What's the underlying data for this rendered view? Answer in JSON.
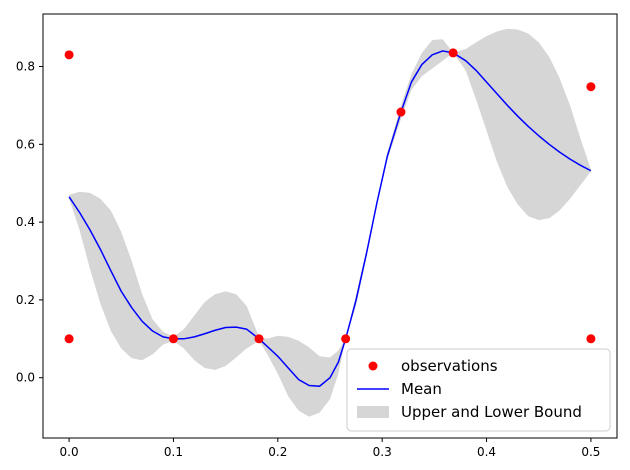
{
  "chart_data": {
    "type": "line",
    "title": "",
    "xlabel": "",
    "ylabel": "",
    "xlim": [
      -0.025,
      0.525
    ],
    "ylim": [
      -0.155,
      0.935
    ],
    "x_ticks": [
      0.0,
      0.1,
      0.2,
      0.3,
      0.4,
      0.5
    ],
    "x_tick_labels": [
      "0.0",
      "0.1",
      "0.2",
      "0.3",
      "0.4",
      "0.5"
    ],
    "y_ticks": [
      0.0,
      0.2,
      0.4,
      0.6,
      0.8
    ],
    "y_tick_labels": [
      "0.0",
      "0.2",
      "0.4",
      "0.6",
      "0.8"
    ],
    "grid": false,
    "legend_position": "bottom-right",
    "colors": {
      "observations": "#ff0000",
      "mean": "#0000ff",
      "band": "#d6d6d6"
    },
    "series": [
      {
        "name": "observations",
        "kind": "scatter",
        "points": [
          [
            0.0,
            0.83
          ],
          [
            0.0,
            0.1
          ],
          [
            0.1,
            0.1
          ],
          [
            0.182,
            0.1
          ],
          [
            0.265,
            0.1
          ],
          [
            0.318,
            0.683
          ],
          [
            0.368,
            0.835
          ],
          [
            0.5,
            0.748
          ],
          [
            0.5,
            0.1
          ]
        ]
      },
      {
        "name": "Mean",
        "kind": "line",
        "points": [
          [
            0.0,
            0.465
          ],
          [
            0.01,
            0.425
          ],
          [
            0.02,
            0.38
          ],
          [
            0.03,
            0.33
          ],
          [
            0.04,
            0.275
          ],
          [
            0.05,
            0.222
          ],
          [
            0.06,
            0.18
          ],
          [
            0.07,
            0.145
          ],
          [
            0.08,
            0.12
          ],
          [
            0.09,
            0.105
          ],
          [
            0.1,
            0.1
          ],
          [
            0.11,
            0.1
          ],
          [
            0.12,
            0.105
          ],
          [
            0.13,
            0.113
          ],
          [
            0.14,
            0.122
          ],
          [
            0.15,
            0.129
          ],
          [
            0.16,
            0.13
          ],
          [
            0.17,
            0.125
          ],
          [
            0.182,
            0.1
          ],
          [
            0.19,
            0.08
          ],
          [
            0.2,
            0.055
          ],
          [
            0.21,
            0.025
          ],
          [
            0.22,
            -0.005
          ],
          [
            0.23,
            -0.02
          ],
          [
            0.24,
            -0.022
          ],
          [
            0.25,
            0.0
          ],
          [
            0.258,
            0.04
          ],
          [
            0.265,
            0.1
          ],
          [
            0.275,
            0.2
          ],
          [
            0.285,
            0.32
          ],
          [
            0.295,
            0.45
          ],
          [
            0.305,
            0.57
          ],
          [
            0.318,
            0.683
          ],
          [
            0.328,
            0.76
          ],
          [
            0.338,
            0.805
          ],
          [
            0.348,
            0.83
          ],
          [
            0.358,
            0.84
          ],
          [
            0.368,
            0.835
          ],
          [
            0.38,
            0.815
          ],
          [
            0.39,
            0.79
          ],
          [
            0.4,
            0.76
          ],
          [
            0.41,
            0.73
          ],
          [
            0.42,
            0.7
          ],
          [
            0.43,
            0.672
          ],
          [
            0.44,
            0.646
          ],
          [
            0.45,
            0.622
          ],
          [
            0.46,
            0.6
          ],
          [
            0.47,
            0.58
          ],
          [
            0.48,
            0.562
          ],
          [
            0.49,
            0.546
          ],
          [
            0.5,
            0.532
          ]
        ]
      },
      {
        "name": "Upper and Lower Bound",
        "kind": "band",
        "upper": [
          [
            0.0,
            0.47
          ],
          [
            0.01,
            0.478
          ],
          [
            0.02,
            0.475
          ],
          [
            0.03,
            0.46
          ],
          [
            0.04,
            0.43
          ],
          [
            0.05,
            0.375
          ],
          [
            0.06,
            0.3
          ],
          [
            0.07,
            0.215
          ],
          [
            0.08,
            0.15
          ],
          [
            0.09,
            0.118
          ],
          [
            0.1,
            0.105
          ],
          [
            0.11,
            0.125
          ],
          [
            0.12,
            0.16
          ],
          [
            0.13,
            0.195
          ],
          [
            0.14,
            0.215
          ],
          [
            0.15,
            0.222
          ],
          [
            0.16,
            0.215
          ],
          [
            0.17,
            0.185
          ],
          [
            0.182,
            0.105
          ],
          [
            0.19,
            0.1
          ],
          [
            0.2,
            0.108
          ],
          [
            0.21,
            0.105
          ],
          [
            0.22,
            0.095
          ],
          [
            0.23,
            0.078
          ],
          [
            0.24,
            0.055
          ],
          [
            0.25,
            0.052
          ],
          [
            0.258,
            0.07
          ],
          [
            0.265,
            0.1
          ],
          [
            0.275,
            0.185
          ],
          [
            0.285,
            0.31
          ],
          [
            0.295,
            0.45
          ],
          [
            0.305,
            0.58
          ],
          [
            0.318,
            0.7
          ],
          [
            0.328,
            0.78
          ],
          [
            0.338,
            0.835
          ],
          [
            0.348,
            0.868
          ],
          [
            0.358,
            0.87
          ],
          [
            0.368,
            0.835
          ],
          [
            0.38,
            0.845
          ],
          [
            0.39,
            0.862
          ],
          [
            0.4,
            0.878
          ],
          [
            0.41,
            0.89
          ],
          [
            0.42,
            0.897
          ],
          [
            0.43,
            0.895
          ],
          [
            0.44,
            0.885
          ],
          [
            0.45,
            0.862
          ],
          [
            0.46,
            0.825
          ],
          [
            0.47,
            0.77
          ],
          [
            0.48,
            0.7
          ],
          [
            0.49,
            0.615
          ],
          [
            0.5,
            0.535
          ]
        ],
        "lower": [
          [
            0.0,
            0.46
          ],
          [
            0.01,
            0.38
          ],
          [
            0.02,
            0.28
          ],
          [
            0.03,
            0.19
          ],
          [
            0.04,
            0.12
          ],
          [
            0.05,
            0.075
          ],
          [
            0.06,
            0.05
          ],
          [
            0.07,
            0.045
          ],
          [
            0.08,
            0.06
          ],
          [
            0.09,
            0.085
          ],
          [
            0.1,
            0.095
          ],
          [
            0.11,
            0.075
          ],
          [
            0.12,
            0.045
          ],
          [
            0.13,
            0.025
          ],
          [
            0.14,
            0.02
          ],
          [
            0.15,
            0.03
          ],
          [
            0.16,
            0.052
          ],
          [
            0.17,
            0.075
          ],
          [
            0.182,
            0.095
          ],
          [
            0.19,
            0.06
          ],
          [
            0.2,
            0.01
          ],
          [
            0.21,
            -0.048
          ],
          [
            0.22,
            -0.085
          ],
          [
            0.23,
            -0.1
          ],
          [
            0.24,
            -0.09
          ],
          [
            0.25,
            -0.055
          ],
          [
            0.258,
            0.01
          ],
          [
            0.265,
            0.1
          ],
          [
            0.275,
            0.215
          ],
          [
            0.285,
            0.33
          ],
          [
            0.295,
            0.45
          ],
          [
            0.305,
            0.56
          ],
          [
            0.318,
            0.665
          ],
          [
            0.328,
            0.74
          ],
          [
            0.338,
            0.775
          ],
          [
            0.348,
            0.795
          ],
          [
            0.358,
            0.815
          ],
          [
            0.368,
            0.835
          ],
          [
            0.38,
            0.79
          ],
          [
            0.39,
            0.715
          ],
          [
            0.4,
            0.635
          ],
          [
            0.41,
            0.555
          ],
          [
            0.42,
            0.49
          ],
          [
            0.43,
            0.445
          ],
          [
            0.44,
            0.415
          ],
          [
            0.45,
            0.405
          ],
          [
            0.46,
            0.41
          ],
          [
            0.47,
            0.43
          ],
          [
            0.48,
            0.46
          ],
          [
            0.49,
            0.495
          ],
          [
            0.5,
            0.53
          ]
        ]
      }
    ]
  }
}
